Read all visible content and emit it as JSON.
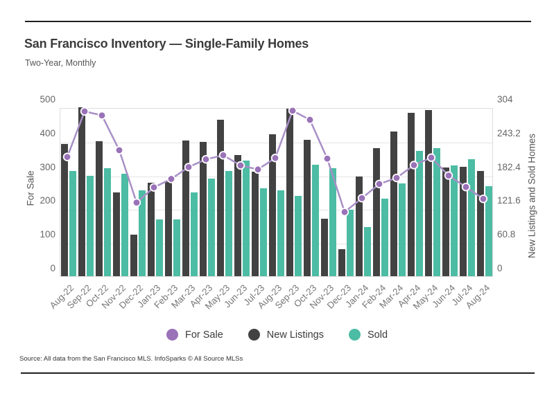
{
  "header": {
    "title": "San Francisco Inventory — Single-Family Homes",
    "subtitle": "Two-Year, Monthly"
  },
  "footer": {
    "source": "Source:  All data from the San Francisco MLS. InfoSparks © All Source MLSs"
  },
  "colors": {
    "for_sale_line": "#a88fc6",
    "for_sale_dot": "#9a72b8",
    "new_listings_bar": "#424242",
    "sold_bar": "#4cbca4",
    "gridline": "#e4e4e4",
    "axis_text": "#666666"
  },
  "chart_data": {
    "type": "bar",
    "title": "San Francisco Inventory — Single-Family Homes",
    "subtitle": "Two-Year, Monthly",
    "grid": true,
    "legend_position": "bottom",
    "categories": [
      "Aug-22",
      "Sep-22",
      "Oct-22",
      "Nov-22",
      "Dec-22",
      "Jan-23",
      "Feb-23",
      "Mar-23",
      "Apr-23",
      "May-23",
      "Jun-23",
      "Jul-23",
      "Aug-23",
      "Sep-23",
      "Oct-23",
      "Nov-23",
      "Dec-23",
      "Jan-24",
      "Feb-24",
      "Mar-24",
      "Apr-24",
      "May-24",
      "Jun-24",
      "Jul-24",
      "Aug-24"
    ],
    "series": [
      {
        "name": "For Sale",
        "type": "line",
        "axis": "left",
        "color": "#9a72b8",
        "values": [
          355,
          490,
          478,
          375,
          220,
          265,
          290,
          325,
          348,
          360,
          330,
          318,
          352,
          492,
          465,
          350,
          192,
          233,
          275,
          293,
          331,
          353,
          300,
          266,
          231
        ]
      },
      {
        "name": "New Listings",
        "type": "bar",
        "axis": "right",
        "color": "#424242",
        "values": [
          238,
          304,
          243,
          151,
          75,
          168,
          171,
          244,
          242,
          282,
          218,
          188,
          255,
          302,
          246,
          103,
          49,
          180,
          230,
          261,
          294,
          299,
          196,
          197,
          190
        ]
      },
      {
        "name": "Sold",
        "type": "bar",
        "axis": "right",
        "color": "#4cbca4",
        "values": [
          190,
          181,
          195,
          185,
          155,
          102,
          102,
          151,
          176,
          190,
          208,
          158,
          154,
          145,
          201,
          195,
          120,
          89,
          140,
          167,
          226,
          230,
          199,
          210,
          162
        ]
      }
    ],
    "left_axis": {
      "label": "For Sale",
      "min": 0,
      "max": 500,
      "tick_labels": [
        "0",
        "100",
        "200",
        "300",
        "400",
        "500"
      ]
    },
    "right_axis": {
      "label": "New Listings and Sold Homes",
      "min": 0,
      "max": 304,
      "tick_labels": [
        "0",
        "60.8",
        "121.6",
        "182.4",
        "243.2",
        "304"
      ]
    }
  }
}
